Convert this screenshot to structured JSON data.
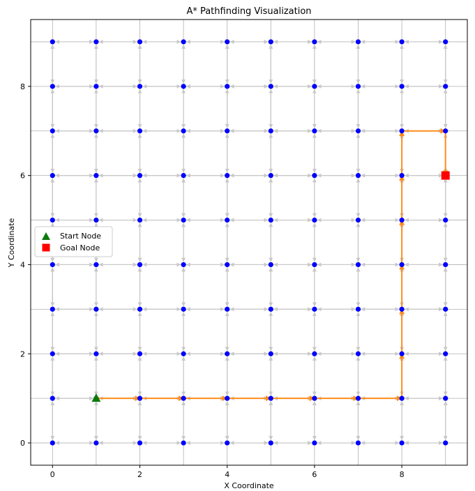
{
  "chart_data": {
    "type": "scatter",
    "title": "A* Pathfinding Visualization",
    "xlabel": "X Coordinate",
    "ylabel": "Y Coordinate",
    "xlim": [
      -0.5,
      9.5
    ],
    "ylim": [
      -0.5,
      9.5
    ],
    "xticks": [
      0,
      2,
      4,
      6,
      8
    ],
    "yticks": [
      0,
      2,
      4,
      6,
      8
    ],
    "grid": true,
    "grid_size": 10,
    "legend_placement": "center-left",
    "legend": [
      {
        "label": "Start Node",
        "marker": "triangle",
        "color": "#0b7a0b"
      },
      {
        "label": "Goal Node",
        "marker": "square",
        "color": "#ff0000"
      }
    ],
    "start": {
      "x": 1,
      "y": 1
    },
    "goal": {
      "x": 9,
      "y": 6
    },
    "path": [
      {
        "x": 1,
        "y": 1
      },
      {
        "x": 2,
        "y": 1
      },
      {
        "x": 3,
        "y": 1
      },
      {
        "x": 4,
        "y": 1
      },
      {
        "x": 5,
        "y": 1
      },
      {
        "x": 6,
        "y": 1
      },
      {
        "x": 7,
        "y": 1
      },
      {
        "x": 8,
        "y": 1
      },
      {
        "x": 8,
        "y": 2
      },
      {
        "x": 8,
        "y": 3
      },
      {
        "x": 8,
        "y": 4
      },
      {
        "x": 8,
        "y": 5
      },
      {
        "x": 8,
        "y": 6
      },
      {
        "x": 8,
        "y": 7
      },
      {
        "x": 9,
        "y": 7
      },
      {
        "x": 9,
        "y": 6
      }
    ],
    "colors": {
      "node": "#0000ff",
      "edge": "#c8c8c8",
      "path": "#ff8c1a",
      "gridline": "#b0b0b0"
    }
  }
}
